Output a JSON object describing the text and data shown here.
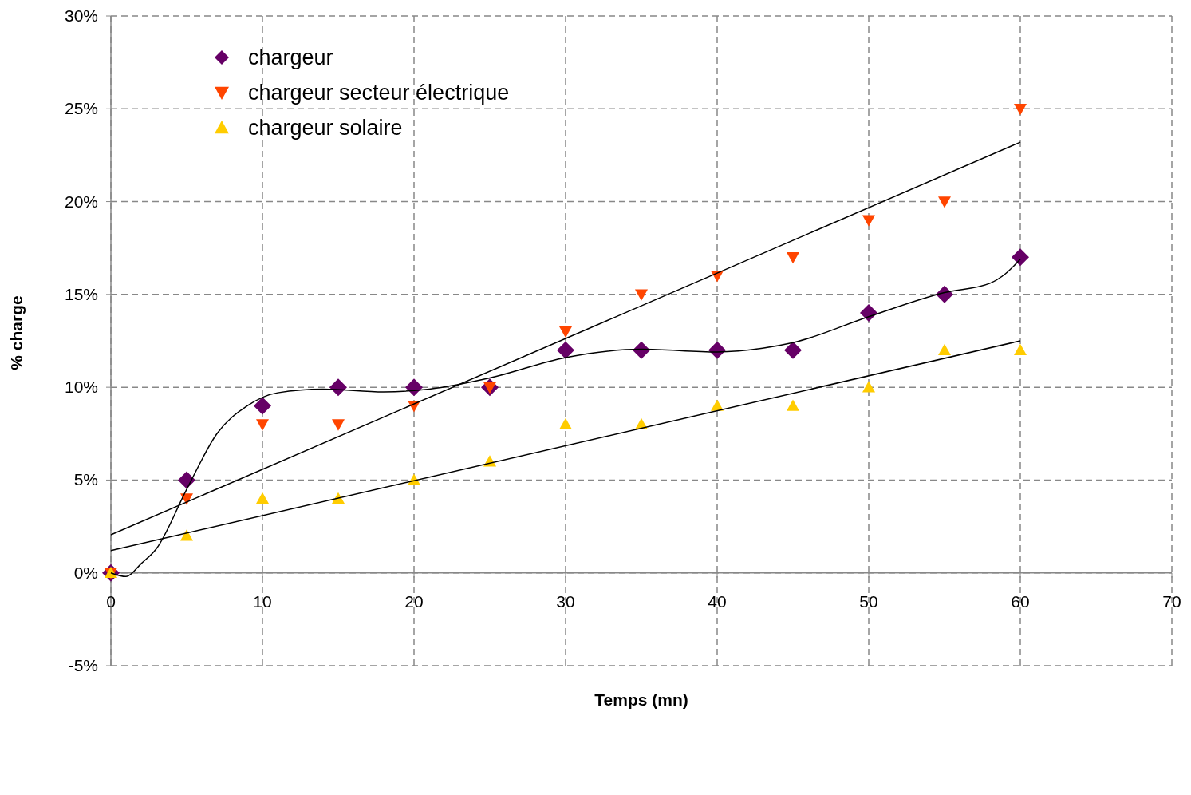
{
  "chart_data": {
    "type": "scatter",
    "xlabel": "Temps (mn)",
    "ylabel": "% charge",
    "xlim": [
      0,
      70
    ],
    "xticks": [
      0,
      10,
      20,
      30,
      40,
      50,
      60,
      70
    ],
    "ylim": [
      -5,
      30
    ],
    "yticks": [
      {
        "value": -5,
        "label": "-5%"
      },
      {
        "value": 0,
        "label": "0%"
      },
      {
        "value": 5,
        "label": "5%"
      },
      {
        "value": 10,
        "label": "10%"
      },
      {
        "value": 15,
        "label": "15%"
      },
      {
        "value": 20,
        "label": "20%"
      },
      {
        "value": 25,
        "label": "25%"
      },
      {
        "value": 30,
        "label": "30%"
      }
    ],
    "grid": true,
    "legend": "top left",
    "series": [
      {
        "name": "chargeur",
        "marker": "diamond",
        "color": "#660066",
        "x": [
          0,
          5,
          10,
          15,
          20,
          25,
          30,
          35,
          40,
          45,
          50,
          55,
          60
        ],
        "values": [
          0,
          5,
          9,
          10,
          10,
          10,
          12,
          12,
          12,
          12,
          14,
          15,
          17
        ]
      },
      {
        "name": "chargeur secteur électrique",
        "marker": "triangle-down",
        "color": "#ff4500",
        "x": [
          0,
          5,
          10,
          15,
          20,
          25,
          30,
          35,
          40,
          45,
          50,
          55,
          60
        ],
        "values": [
          0,
          4,
          8,
          8,
          9,
          10,
          13,
          15,
          16,
          17,
          19,
          20,
          25
        ]
      },
      {
        "name": "chargeur solaire",
        "marker": "triangle",
        "color": "#ffcc00",
        "x": [
          0,
          5,
          10,
          15,
          20,
          25,
          30,
          35,
          40,
          45,
          50,
          55,
          60
        ],
        "values": [
          0,
          2,
          4,
          4,
          5,
          6,
          8,
          8,
          9,
          9,
          10,
          12,
          12
        ]
      },
      {
        "type": "line",
        "marker": "none",
        "color": "#000000",
        "x": [
          0,
          1,
          2,
          3,
          5,
          7,
          9,
          11,
          14,
          18,
          21,
          25,
          30,
          35,
          40,
          43,
          45,
          50,
          55,
          58,
          59,
          60
        ],
        "values": [
          0,
          -0.2,
          0.5,
          1.3,
          4.5,
          7.5,
          9,
          9.7,
          9.9,
          9.75,
          9.9,
          10.5,
          11.6,
          12.05,
          11.9,
          12.1,
          12.4,
          13.8,
          15.1,
          15.6,
          16.1,
          16.9
        ]
      },
      {
        "type": "line",
        "marker": "none",
        "color": "#000000",
        "x": [
          0,
          60
        ],
        "values": [
          2.05,
          23.2
        ]
      },
      {
        "type": "line",
        "marker": "none",
        "color": "#000000",
        "x": [
          0,
          60
        ],
        "values": [
          1.2,
          12.5
        ]
      }
    ]
  }
}
